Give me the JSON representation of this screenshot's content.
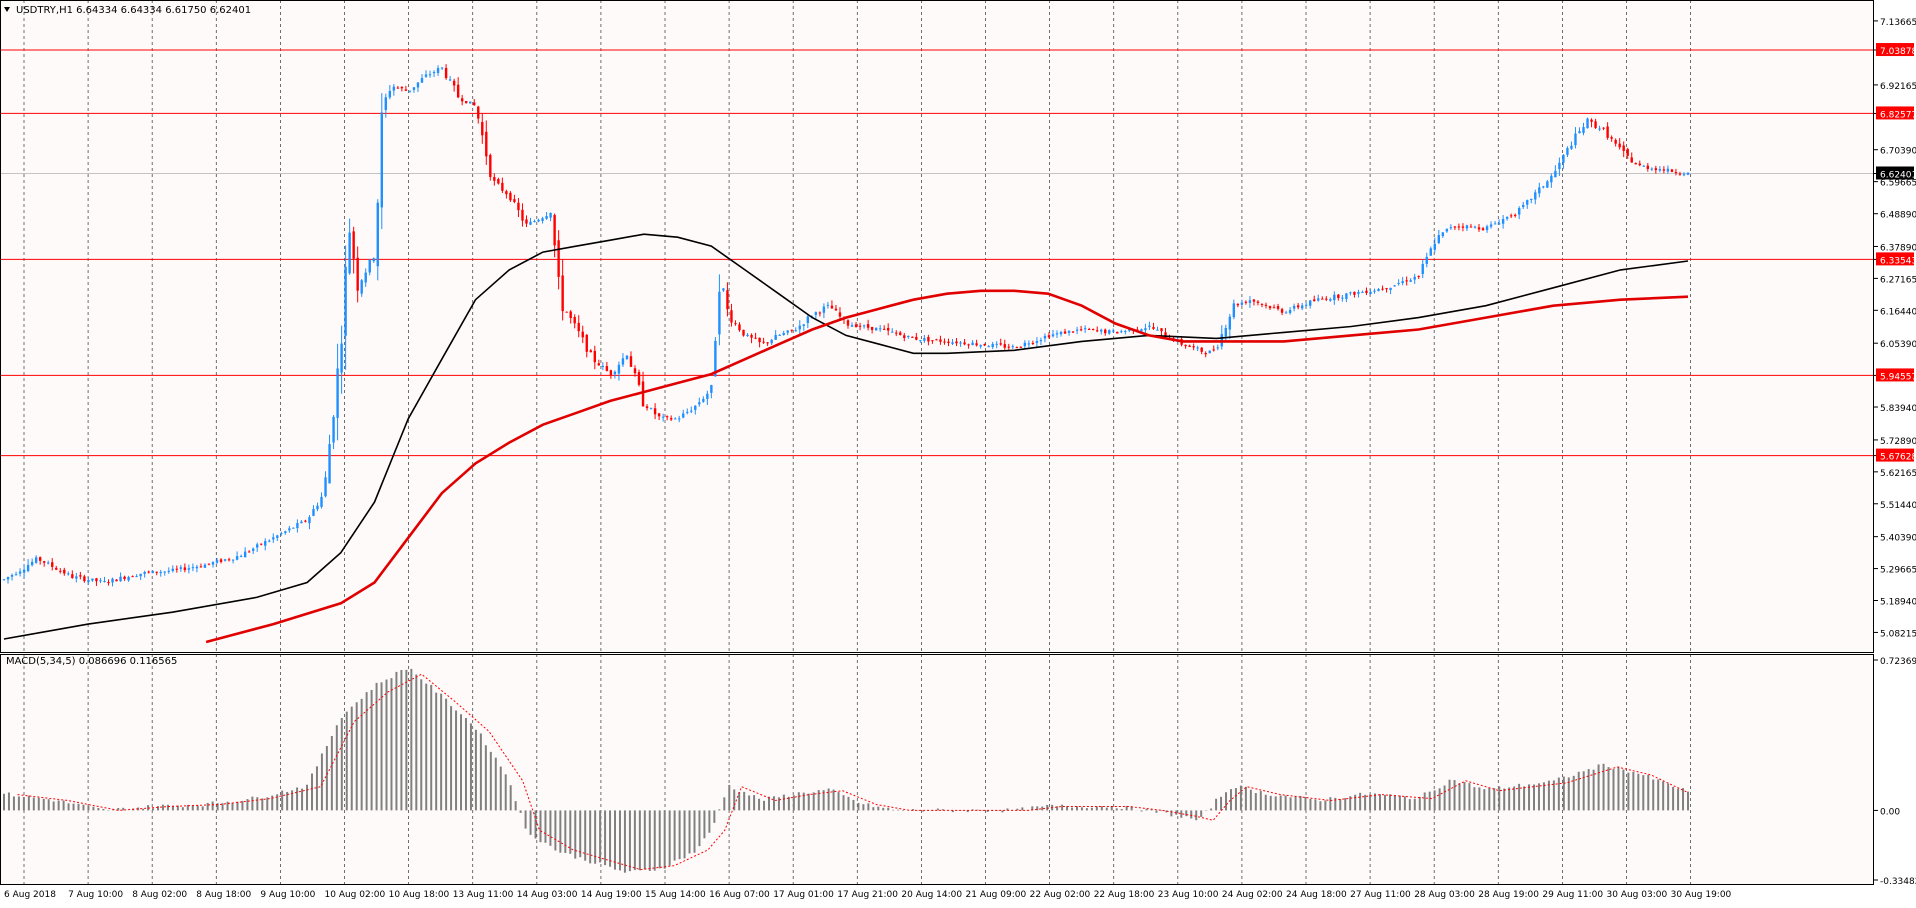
{
  "colors": {
    "background": "#fffafa",
    "up_candle": "#1e90ff",
    "down_candle": "#ff0000",
    "level_line": "#ff0000",
    "ma_fast": "#000000",
    "ma_slow": "#e00000",
    "macd_hist": "#808080",
    "macd_signal": "#ff0000",
    "price_label_bg": "#ff0000",
    "current_price_bg": "#000000"
  },
  "main_panel": {
    "header_icon": "dropdown-triangle-icon",
    "header": "USDTRY,H1  6.64334 6.64334 6.61750 6.62401",
    "price_ticks": [
      "7.13665",
      "7.03878",
      "6.92165",
      "6.82577",
      "6.70390",
      "6.62401",
      "6.59665",
      "6.48890",
      "6.37890",
      "6.33543",
      "6.27165",
      "6.16440",
      "6.05390",
      "5.94557",
      "5.83940",
      "5.72890",
      "5.67628",
      "5.62165",
      "5.51440",
      "5.40390",
      "5.29665",
      "5.18940",
      "5.08215"
    ],
    "level_prices": [
      "7.03878",
      "6.82577",
      "6.33543",
      "5.94557",
      "5.67628"
    ],
    "current_price": "6.62401"
  },
  "macd_panel": {
    "header": "MACD(5,34,5) 0.086696 0.116565",
    "ticks": [
      "0.723693",
      "0.00",
      "-0.334823"
    ]
  },
  "time_labels": [
    "6 Aug 2018",
    "7 Aug 10:00",
    "8 Aug 02:00",
    "8 Aug 18:00",
    "9 Aug 10:00",
    "10 Aug 02:00",
    "10 Aug 18:00",
    "13 Aug 11:00",
    "14 Aug 03:00",
    "14 Aug 19:00",
    "15 Aug 14:00",
    "16 Aug 07:00",
    "17 Aug 01:00",
    "17 Aug 21:00",
    "20 Aug 14:00",
    "21 Aug 09:00",
    "22 Aug 02:00",
    "22 Aug 18:00",
    "23 Aug 10:00",
    "24 Aug 02:00",
    "24 Aug 18:00",
    "27 Aug 11:00",
    "28 Aug 03:00",
    "28 Aug 19:00",
    "29 Aug 11:00",
    "30 Aug 03:00",
    "30 Aug 19:00"
  ],
  "chart_data": {
    "type": "candlestick",
    "symbol": "USDTRY",
    "timeframe": "H1",
    "y_range": [
      5.05,
      7.18
    ],
    "macd_range": [
      -0.334823,
      0.723693
    ],
    "price_path": [
      [
        0,
        5.26
      ],
      [
        0.02,
        5.33
      ],
      [
        0.04,
        5.27
      ],
      [
        0.06,
        5.25
      ],
      [
        0.08,
        5.28
      ],
      [
        0.1,
        5.29
      ],
      [
        0.12,
        5.31
      ],
      [
        0.14,
        5.34
      ],
      [
        0.16,
        5.4
      ],
      [
        0.18,
        5.46
      ],
      [
        0.19,
        5.55
      ],
      [
        0.195,
        5.8
      ],
      [
        0.2,
        6.05
      ],
      [
        0.205,
        6.45
      ],
      [
        0.21,
        6.25
      ],
      [
        0.22,
        6.35
      ],
      [
        0.225,
        6.85
      ],
      [
        0.23,
        6.92
      ],
      [
        0.24,
        6.9
      ],
      [
        0.25,
        6.95
      ],
      [
        0.26,
        6.98
      ],
      [
        0.27,
        6.88
      ],
      [
        0.28,
        6.85
      ],
      [
        0.29,
        6.6
      ],
      [
        0.3,
        6.55
      ],
      [
        0.31,
        6.45
      ],
      [
        0.32,
        6.48
      ],
      [
        0.325,
        6.5
      ],
      [
        0.33,
        6.2
      ],
      [
        0.34,
        6.1
      ],
      [
        0.35,
        6.0
      ],
      [
        0.36,
        5.95
      ],
      [
        0.37,
        6.02
      ],
      [
        0.38,
        5.85
      ],
      [
        0.39,
        5.8
      ],
      [
        0.4,
        5.8
      ],
      [
        0.41,
        5.84
      ],
      [
        0.42,
        5.9
      ],
      [
        0.425,
        6.3
      ],
      [
        0.43,
        6.15
      ],
      [
        0.44,
        6.08
      ],
      [
        0.45,
        6.05
      ],
      [
        0.46,
        6.08
      ],
      [
        0.47,
        6.1
      ],
      [
        0.48,
        6.15
      ],
      [
        0.49,
        6.18
      ],
      [
        0.5,
        6.12
      ],
      [
        0.52,
        6.1
      ],
      [
        0.54,
        6.07
      ],
      [
        0.56,
        6.06
      ],
      [
        0.58,
        6.05
      ],
      [
        0.6,
        6.04
      ],
      [
        0.62,
        6.08
      ],
      [
        0.64,
        6.1
      ],
      [
        0.66,
        6.09
      ],
      [
        0.68,
        6.11
      ],
      [
        0.7,
        6.05
      ],
      [
        0.715,
        6.02
      ],
      [
        0.72,
        6.04
      ],
      [
        0.73,
        6.18
      ],
      [
        0.74,
        6.2
      ],
      [
        0.76,
        6.16
      ],
      [
        0.78,
        6.2
      ],
      [
        0.8,
        6.22
      ],
      [
        0.82,
        6.24
      ],
      [
        0.83,
        6.26
      ],
      [
        0.84,
        6.28
      ],
      [
        0.85,
        6.4
      ],
      [
        0.86,
        6.45
      ],
      [
        0.88,
        6.44
      ],
      [
        0.9,
        6.5
      ],
      [
        0.92,
        6.62
      ],
      [
        0.93,
        6.72
      ],
      [
        0.94,
        6.8
      ],
      [
        0.95,
        6.77
      ],
      [
        0.96,
        6.7
      ],
      [
        0.97,
        6.65
      ],
      [
        1.0,
        6.624
      ]
    ],
    "ma_fast": [
      [
        0,
        5.06
      ],
      [
        0.05,
        5.11
      ],
      [
        0.1,
        5.15
      ],
      [
        0.15,
        5.2
      ],
      [
        0.18,
        5.25
      ],
      [
        0.2,
        5.35
      ],
      [
        0.22,
        5.52
      ],
      [
        0.24,
        5.8
      ],
      [
        0.26,
        6.0
      ],
      [
        0.28,
        6.2
      ],
      [
        0.3,
        6.3
      ],
      [
        0.32,
        6.36
      ],
      [
        0.34,
        6.38
      ],
      [
        0.36,
        6.4
      ],
      [
        0.38,
        6.42
      ],
      [
        0.4,
        6.41
      ],
      [
        0.42,
        6.38
      ],
      [
        0.44,
        6.3
      ],
      [
        0.46,
        6.22
      ],
      [
        0.48,
        6.14
      ],
      [
        0.5,
        6.08
      ],
      [
        0.52,
        6.05
      ],
      [
        0.54,
        6.02
      ],
      [
        0.56,
        6.02
      ],
      [
        0.6,
        6.03
      ],
      [
        0.64,
        6.06
      ],
      [
        0.68,
        6.08
      ],
      [
        0.72,
        6.07
      ],
      [
        0.76,
        6.09
      ],
      [
        0.8,
        6.11
      ],
      [
        0.84,
        6.14
      ],
      [
        0.88,
        6.18
      ],
      [
        0.92,
        6.24
      ],
      [
        0.96,
        6.3
      ],
      [
        1.0,
        6.33
      ]
    ],
    "ma_slow": [
      [
        0.12,
        5.05
      ],
      [
        0.16,
        5.11
      ],
      [
        0.2,
        5.18
      ],
      [
        0.22,
        5.25
      ],
      [
        0.24,
        5.4
      ],
      [
        0.26,
        5.55
      ],
      [
        0.28,
        5.65
      ],
      [
        0.3,
        5.72
      ],
      [
        0.32,
        5.78
      ],
      [
        0.34,
        5.82
      ],
      [
        0.36,
        5.86
      ],
      [
        0.38,
        5.89
      ],
      [
        0.4,
        5.92
      ],
      [
        0.42,
        5.95
      ],
      [
        0.44,
        6.0
      ],
      [
        0.46,
        6.05
      ],
      [
        0.48,
        6.1
      ],
      [
        0.5,
        6.14
      ],
      [
        0.52,
        6.17
      ],
      [
        0.54,
        6.2
      ],
      [
        0.56,
        6.22
      ],
      [
        0.58,
        6.23
      ],
      [
        0.6,
        6.23
      ],
      [
        0.62,
        6.22
      ],
      [
        0.64,
        6.18
      ],
      [
        0.66,
        6.12
      ],
      [
        0.68,
        6.08
      ],
      [
        0.7,
        6.06
      ],
      [
        0.72,
        6.06
      ],
      [
        0.76,
        6.06
      ],
      [
        0.8,
        6.08
      ],
      [
        0.84,
        6.1
      ],
      [
        0.88,
        6.14
      ],
      [
        0.92,
        6.18
      ],
      [
        0.96,
        6.2
      ],
      [
        1.0,
        6.21
      ]
    ],
    "macd_path": [
      [
        0,
        0.08
      ],
      [
        0.03,
        0.05
      ],
      [
        0.06,
        0.0
      ],
      [
        0.09,
        0.02
      ],
      [
        0.12,
        0.03
      ],
      [
        0.15,
        0.06
      ],
      [
        0.18,
        0.12
      ],
      [
        0.2,
        0.45
      ],
      [
        0.22,
        0.6
      ],
      [
        0.24,
        0.69
      ],
      [
        0.26,
        0.55
      ],
      [
        0.28,
        0.4
      ],
      [
        0.3,
        0.15
      ],
      [
        0.31,
        -0.1
      ],
      [
        0.33,
        -0.2
      ],
      [
        0.35,
        -0.25
      ],
      [
        0.37,
        -0.3
      ],
      [
        0.39,
        -0.28
      ],
      [
        0.41,
        -0.2
      ],
      [
        0.42,
        -0.1
      ],
      [
        0.43,
        0.12
      ],
      [
        0.45,
        0.05
      ],
      [
        0.47,
        0.08
      ],
      [
        0.49,
        0.1
      ],
      [
        0.51,
        0.03
      ],
      [
        0.53,
        0.0
      ],
      [
        0.55,
        0.0
      ],
      [
        0.57,
        0.0
      ],
      [
        0.6,
        0.0
      ],
      [
        0.62,
        0.02
      ],
      [
        0.64,
        0.02
      ],
      [
        0.66,
        0.02
      ],
      [
        0.68,
        0.0
      ],
      [
        0.7,
        -0.03
      ],
      [
        0.71,
        -0.05
      ],
      [
        0.72,
        0.05
      ],
      [
        0.73,
        0.12
      ],
      [
        0.75,
        0.08
      ],
      [
        0.78,
        0.05
      ],
      [
        0.81,
        0.08
      ],
      [
        0.84,
        0.06
      ],
      [
        0.86,
        0.15
      ],
      [
        0.88,
        0.1
      ],
      [
        0.9,
        0.12
      ],
      [
        0.92,
        0.14
      ],
      [
        0.95,
        0.22
      ],
      [
        0.97,
        0.18
      ],
      [
        1.0,
        0.09
      ]
    ]
  }
}
